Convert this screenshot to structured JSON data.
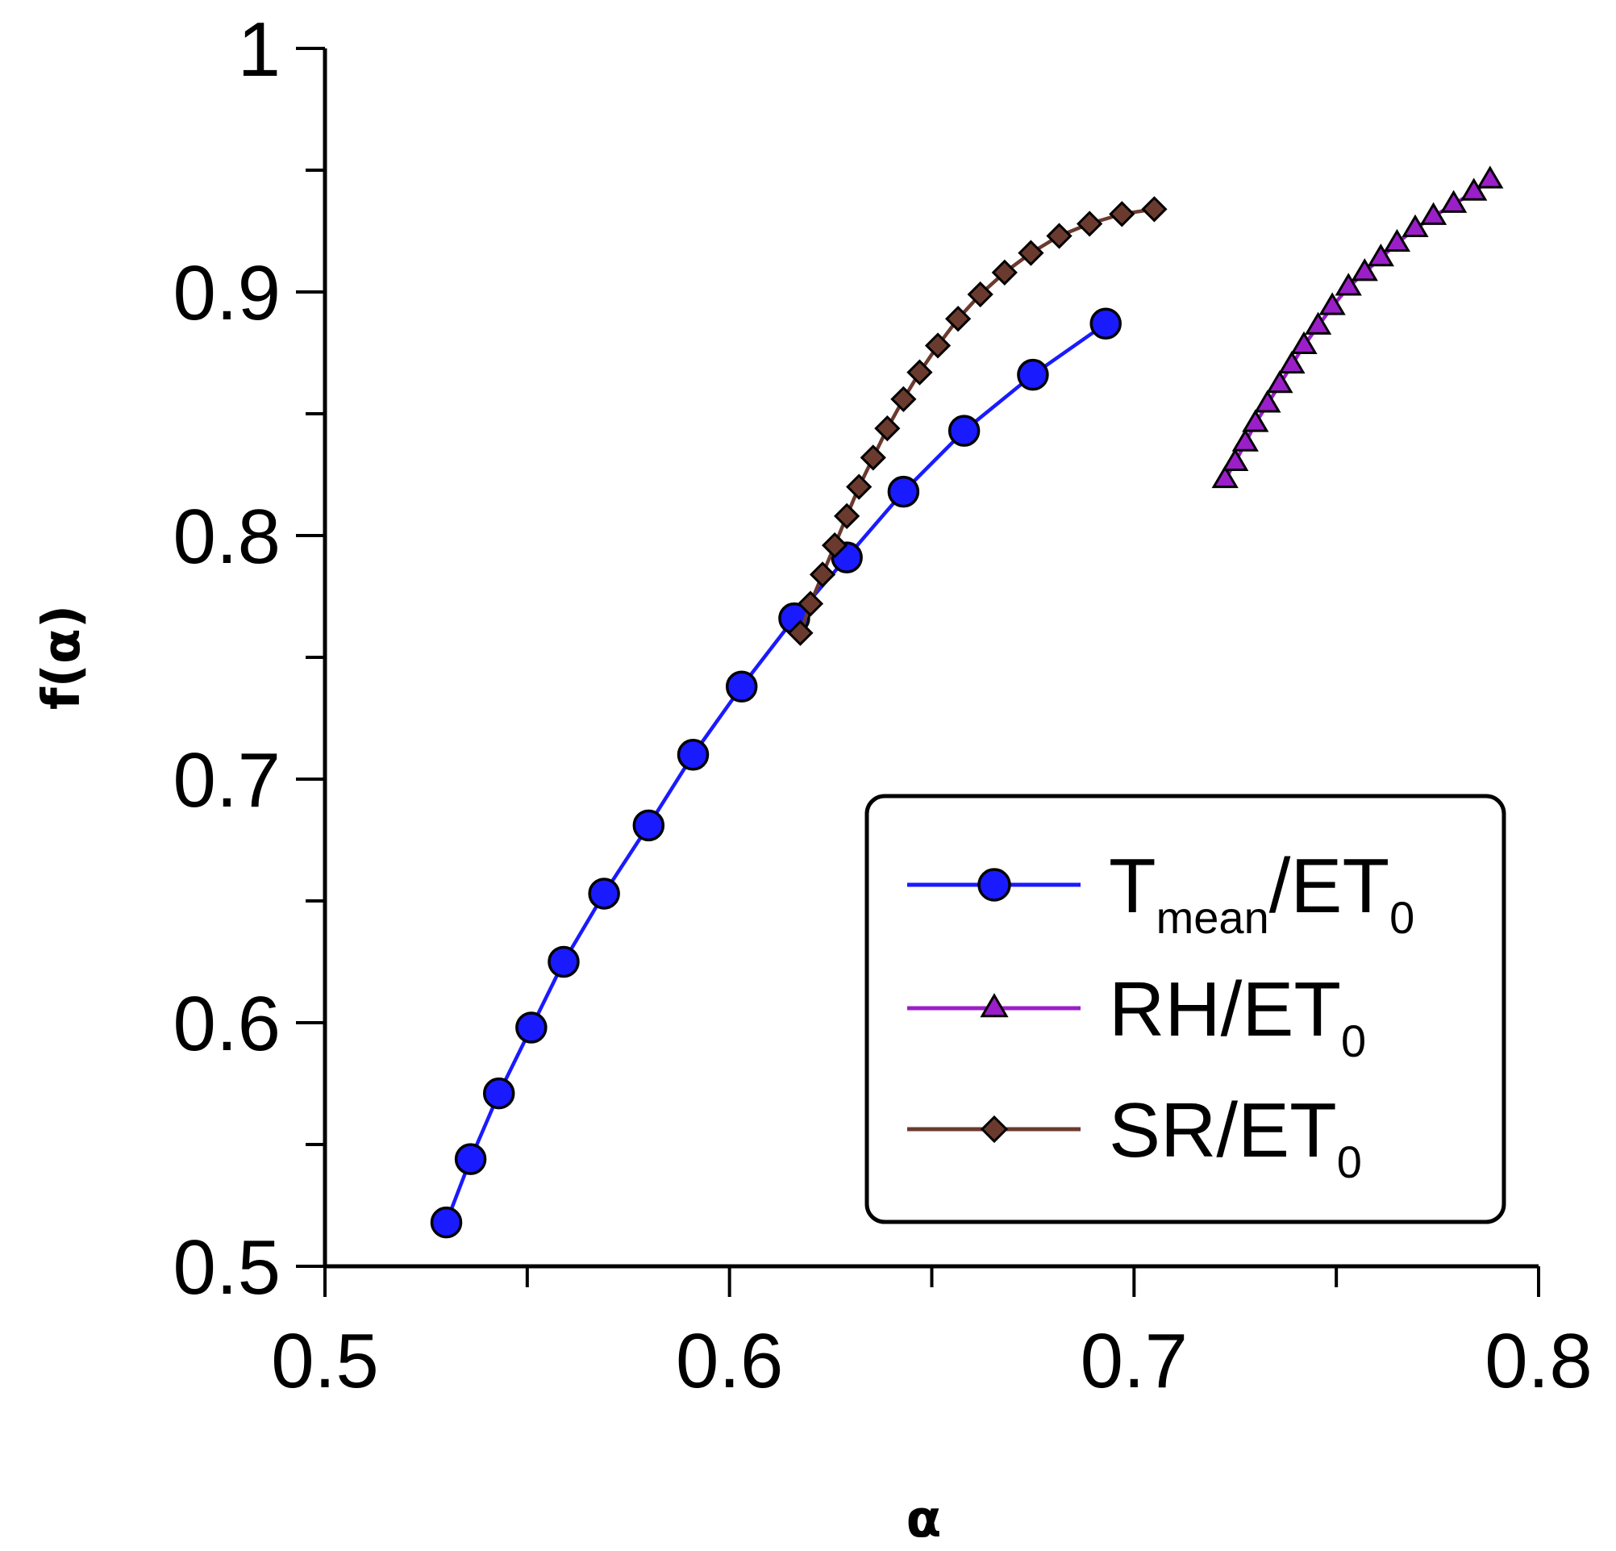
{
  "chart_data": {
    "type": "line",
    "title": "",
    "xlabel": "α",
    "ylabel": "f(α)",
    "xlim": [
      0.5,
      0.8
    ],
    "ylim": [
      0.5,
      1.0
    ],
    "xticks": [
      0.5,
      0.6,
      0.7,
      0.8
    ],
    "xtick_labels": [
      "0.5",
      "0.6",
      "0.7",
      "0.8"
    ],
    "yticks": [
      0.5,
      0.6,
      0.7,
      0.8,
      0.9,
      1.0
    ],
    "ytick_labels": [
      "0.5",
      "0.6",
      "0.7",
      "0.8",
      "0.9",
      "1"
    ],
    "grid": false,
    "legend_position": "bottom-right",
    "series": [
      {
        "name": "Tmean/ET0",
        "label_main": "T",
        "label_sub": "mean",
        "label_rest": "/ET",
        "label_sub2": "0",
        "color": "#1a1aff",
        "marker": "circle",
        "x": [
          0.53,
          0.536,
          0.543,
          0.551,
          0.559,
          0.569,
          0.58,
          0.591,
          0.603,
          0.616,
          0.629,
          0.643,
          0.658,
          0.675,
          0.693
        ],
        "y": [
          0.518,
          0.544,
          0.571,
          0.598,
          0.625,
          0.653,
          0.681,
          0.71,
          0.738,
          0.766,
          0.791,
          0.818,
          0.843,
          0.866,
          0.887
        ]
      },
      {
        "name": "RH/ET0",
        "label_main": "RH/ET",
        "label_sub2": "0",
        "color": "#9b1fc8",
        "marker": "triangle",
        "x": [
          0.7225,
          0.725,
          0.7275,
          0.73,
          0.733,
          0.736,
          0.739,
          0.742,
          0.7455,
          0.749,
          0.753,
          0.757,
          0.761,
          0.765,
          0.7695,
          0.774,
          0.779,
          0.784,
          0.788
        ],
        "y": [
          0.823,
          0.83,
          0.838,
          0.846,
          0.854,
          0.862,
          0.87,
          0.878,
          0.886,
          0.894,
          0.902,
          0.908,
          0.914,
          0.92,
          0.926,
          0.931,
          0.936,
          0.941,
          0.946
        ]
      },
      {
        "name": "SR/ET0",
        "label_main": "SR/ET",
        "label_sub2": "0",
        "color": "#6b3a2e",
        "marker": "diamond",
        "x": [
          0.6175,
          0.62,
          0.623,
          0.626,
          0.629,
          0.632,
          0.6355,
          0.639,
          0.643,
          0.647,
          0.6515,
          0.6565,
          0.662,
          0.668,
          0.6745,
          0.6815,
          0.689,
          0.697,
          0.705
        ],
        "y": [
          0.76,
          0.772,
          0.784,
          0.796,
          0.808,
          0.82,
          0.832,
          0.844,
          0.856,
          0.867,
          0.878,
          0.889,
          0.899,
          0.908,
          0.916,
          0.923,
          0.928,
          0.932,
          0.934
        ]
      }
    ]
  }
}
